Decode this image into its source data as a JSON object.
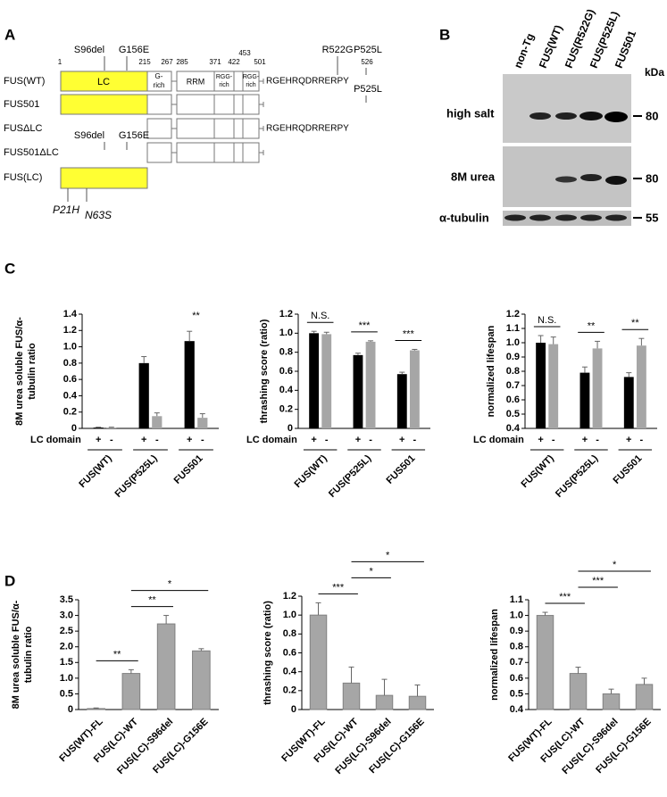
{
  "diagram": {
    "label": "A",
    "positions": [
      "1",
      "215",
      "267",
      "285",
      "371",
      "422",
      "453",
      "501",
      "526"
    ],
    "top_mutations": [
      "S96del",
      "G156E",
      "R522G",
      "P525L"
    ],
    "rows": [
      {
        "name": "FUS(WT)",
        "boxes": [
          "LC",
          [
            "G-",
            "rich"
          ],
          "RRM",
          [
            "RGG-",
            "rich"
          ],
          [
            "RGG-",
            "rich"
          ]
        ],
        "tail": "RGEHRQDRRERPY"
      },
      {
        "name": "FUS501",
        "mutation": "P525L"
      },
      {
        "name": "FUSΔLC",
        "tail": "RGEHRQDRRERPY"
      },
      {
        "name": "FUS501ΔLC",
        "mutations": [
          "S96del",
          "G156E"
        ]
      },
      {
        "name": "FUS(LC)",
        "mutations": [
          "P21H",
          "N63S"
        ]
      }
    ]
  },
  "blot": {
    "label": "B",
    "lanes": [
      "non-Tg",
      "FUS(WT)",
      "FUS(R522G)",
      "FUS(P525L)",
      "FUS501"
    ],
    "unit": "kDa",
    "rows": [
      {
        "name": "high salt",
        "marker": 80
      },
      {
        "name": "8M urea",
        "marker": 80
      },
      {
        "name": "α-tubulin",
        "marker": 55
      }
    ]
  },
  "section_labels": [
    "C",
    "D"
  ],
  "chart_data": [
    {
      "type": "bar",
      "y_label": [
        "8M urea soluble FUS/α-",
        "tubulin ratio"
      ],
      "categories": [
        "FUS(WT)",
        "FUS(P525L)",
        "FUS501"
      ],
      "x_sublabel": "LC domain",
      "series": [
        {
          "name": "+",
          "color": "#000000",
          "values": [
            0.01,
            0.8,
            1.07
          ],
          "errors": [
            0.005,
            0.08,
            0.12
          ]
        },
        {
          "name": "-",
          "color": "#a6a6a6",
          "values": [
            0.01,
            0.15,
            0.13
          ],
          "errors": [
            0.005,
            0.04,
            0.05
          ]
        }
      ],
      "ylim": [
        0,
        1.4
      ],
      "yticks": [
        0,
        0.2,
        0.4,
        0.6,
        0.8,
        {
          "value": 1,
          "label": "1.0"
        },
        1.2,
        1.4
      ],
      "annotations": [
        {
          "text": "**",
          "at": "FUS501",
          "bracket": false
        }
      ]
    },
    {
      "type": "bar",
      "y_label": [
        "thrashing score (ratio)"
      ],
      "categories": [
        "FUS(WT)",
        "FUS(P525L)",
        "FUS501"
      ],
      "x_sublabel": "LC domain",
      "series": [
        {
          "name": "+",
          "color": "#000000",
          "values": [
            1.0,
            0.77,
            0.57
          ],
          "errors": [
            0.02,
            0.02,
            0.02
          ]
        },
        {
          "name": "-",
          "color": "#a6a6a6",
          "values": [
            0.99,
            0.91,
            0.82
          ],
          "errors": [
            0.02,
            0.01,
            0.01
          ]
        }
      ],
      "ylim": [
        0,
        1.2
      ],
      "yticks": [
        0,
        0.2,
        0.4,
        0.6,
        0.8,
        {
          "value": 1,
          "label": "1.0"
        },
        1.2
      ],
      "annotations": [
        {
          "text": "N.S.",
          "at": "FUS(WT)",
          "bracket": true
        },
        {
          "text": "***",
          "at": "FUS(P525L)",
          "bracket": true
        },
        {
          "text": "***",
          "at": "FUS501",
          "bracket": true
        }
      ]
    },
    {
      "type": "bar",
      "y_label": [
        "normalized lifespan"
      ],
      "categories": [
        "FUS(WT)",
        "FUS(P525L)",
        "FUS501"
      ],
      "x_sublabel": "LC domain",
      "series": [
        {
          "name": "+",
          "color": "#000000",
          "values": [
            1.0,
            0.79,
            0.76
          ],
          "errors": [
            0.05,
            0.04,
            0.03
          ]
        },
        {
          "name": "-",
          "color": "#a6a6a6",
          "values": [
            0.99,
            0.96,
            0.98
          ],
          "errors": [
            0.05,
            0.05,
            0.05
          ]
        }
      ],
      "ylim": [
        0.4,
        1.2
      ],
      "yticks": [
        0.4,
        0.5,
        0.6,
        0.7,
        0.8,
        0.9,
        {
          "value": 1,
          "label": "1.0"
        },
        1.1,
        1.2
      ],
      "annotations": [
        {
          "text": "N.S.",
          "at": "FUS(WT)",
          "bracket": true
        },
        {
          "text": "**",
          "at": "FUS(P525L)",
          "bracket": true
        },
        {
          "text": "**",
          "at": "FUS501",
          "bracket": true
        }
      ]
    },
    {
      "type": "bar",
      "y_label": [
        "8M urea soluble FUS/α-",
        "tubulin ratio"
      ],
      "categories": [
        "FUS(WT)-FL",
        "FUS(LC)-WT",
        "FUS(LC)-S96del",
        "FUS(LC)-G156E"
      ],
      "color": "#a6a6a6",
      "values": [
        0.03,
        1.15,
        2.73,
        1.87
      ],
      "errors": [
        0.02,
        0.12,
        0.27,
        0.07
      ],
      "ylim": [
        0,
        3.5
      ],
      "yticks": [
        0,
        0.5,
        {
          "value": 1,
          "label": "1.0"
        },
        1.5,
        {
          "value": 2,
          "label": "2.0"
        },
        2.5,
        {
          "value": 3,
          "label": "3.0"
        },
        3.5
      ],
      "annotations": [
        {
          "text": "**",
          "from": "FUS(WT)-FL",
          "to": "FUS(LC)-WT"
        },
        {
          "text": "**",
          "from": "FUS(LC)-WT",
          "to": "FUS(LC)-S96del"
        },
        {
          "text": "*",
          "from": "FUS(LC)-WT",
          "to": "FUS(LC)-G156E"
        }
      ]
    },
    {
      "type": "bar",
      "y_label": [
        "thrashing score (ratio)"
      ],
      "categories": [
        "FUS(WT)-FL",
        "FUS(LC)-WT",
        "FUS(LC)-S96del",
        "FUS(LC)-G156E"
      ],
      "color": "#a6a6a6",
      "values": [
        1.0,
        0.28,
        0.15,
        0.14
      ],
      "errors": [
        0.13,
        0.17,
        0.17,
        0.12
      ],
      "ylim": [
        0,
        1.2
      ],
      "yticks": [
        0,
        0.2,
        0.4,
        0.6,
        0.8,
        {
          "value": 1,
          "label": "1.0"
        },
        1.2
      ],
      "annotations": [
        {
          "text": "***",
          "from": "FUS(WT)-FL",
          "to": "FUS(LC)-WT"
        },
        {
          "text": "*",
          "from": "FUS(LC)-WT",
          "to": "FUS(LC)-S96del"
        },
        {
          "text": "*",
          "from": "FUS(LC)-WT",
          "to": "FUS(LC)-G156E"
        }
      ]
    },
    {
      "type": "bar",
      "y_label": [
        "normalized lifespan"
      ],
      "categories": [
        "FUS(WT)-FL",
        "FUS(LC)-WT",
        "FUS(LC)-S96del",
        "FUS(LC)-G156E"
      ],
      "color": "#a6a6a6",
      "values": [
        1.0,
        0.63,
        0.5,
        0.56
      ],
      "errors": [
        0.02,
        0.04,
        0.03,
        0.04
      ],
      "ylim": [
        0.4,
        1.1
      ],
      "yticks": [
        0.4,
        0.5,
        0.6,
        0.7,
        0.8,
        0.9,
        {
          "value": 1,
          "label": "1.0"
        },
        1.1
      ],
      "annotations": [
        {
          "text": "***",
          "from": "FUS(WT)-FL",
          "to": "FUS(LC)-WT"
        },
        {
          "text": "***",
          "from": "FUS(LC)-WT",
          "to": "FUS(LC)-S96del"
        },
        {
          "text": "*",
          "from": "FUS(LC)-WT",
          "to": "FUS(LC)-G156E"
        }
      ]
    }
  ]
}
